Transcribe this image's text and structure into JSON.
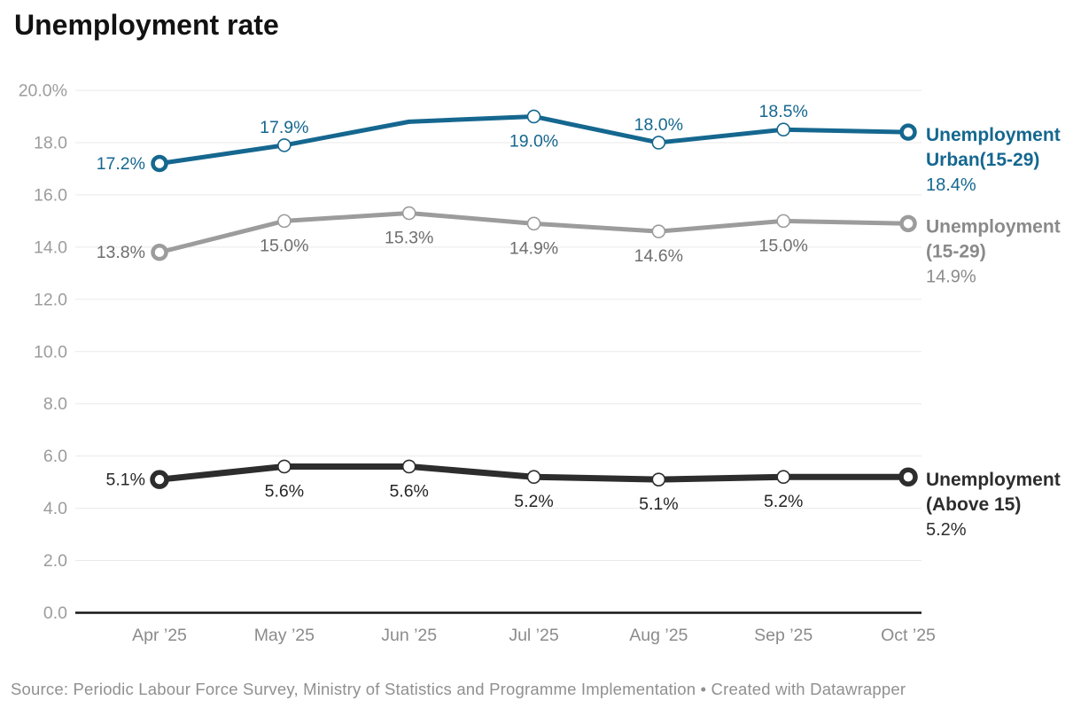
{
  "header": {
    "title": "Unemployment rate"
  },
  "footer": {
    "text": "Source: Periodic Labour Force Survey, Ministry of Statistics and Programme Implementation • Created with Datawrapper"
  },
  "chart_data": {
    "type": "line",
    "title": "Unemployment rate",
    "xlabel": "",
    "ylabel": "",
    "ylim": [
      0,
      20
    ],
    "grid": true,
    "legend_position": "right",
    "x_categories": [
      "Apr ’25",
      "May ’25",
      "Jun ’25",
      "Jul ’25",
      "Aug ’25",
      "Sep ’25",
      "Oct ’25"
    ],
    "ytick_labels": [
      "0.0",
      "2.0",
      "4.0",
      "6.0",
      "8.0",
      "10.0",
      "12.0",
      "14.0",
      "16.0",
      "18.0",
      "20.0%"
    ],
    "series": [
      {
        "name": "Unemployment Urban(15-29)",
        "color": "#15678f",
        "label_color": "#15678f",
        "legend_color": "#15678f",
        "line_width": 5,
        "values": [
          17.2,
          17.9,
          18.8,
          19.0,
          18.0,
          18.5,
          18.4
        ],
        "point_labels": [
          "17.2%",
          "17.9%",
          null,
          "19.0%",
          "18.0%",
          "18.5%",
          null
        ],
        "label_placement": [
          "left",
          "above",
          null,
          "below",
          "above",
          "above",
          null
        ],
        "markers": [
          "bold",
          "thin",
          "none",
          "thin",
          "thin",
          "thin",
          "bold"
        ],
        "legend_lines": [
          "Unemployment",
          "Urban(15-29)"
        ],
        "legend_value": "18.4%"
      },
      {
        "name": "Unemployment (15-29)",
        "color": "#9c9c9c",
        "label_color": "#6e6e6e",
        "legend_color": "#8a8a8a",
        "line_width": 5,
        "values": [
          13.8,
          15.0,
          15.3,
          14.9,
          14.6,
          15.0,
          14.9
        ],
        "point_labels": [
          "13.8%",
          "15.0%",
          "15.3%",
          "14.9%",
          "14.6%",
          "15.0%",
          null
        ],
        "label_placement": [
          "left",
          "below",
          "below",
          "below",
          "below",
          "below",
          null
        ],
        "markers": [
          "bold",
          "thin",
          "thin",
          "thin",
          "thin",
          "thin",
          "bold"
        ],
        "legend_lines": [
          "Unemployment",
          "(15-29)"
        ],
        "legend_value": "14.9%"
      },
      {
        "name": "Unemployment (Above 15)",
        "color": "#2d2d2d",
        "label_color": "#262626",
        "legend_color": "#2d2d2d",
        "line_width": 7,
        "values": [
          5.1,
          5.6,
          5.6,
          5.2,
          5.1,
          5.2,
          5.2
        ],
        "point_labels": [
          "5.1%",
          "5.6%",
          "5.6%",
          "5.2%",
          "5.1%",
          "5.2%",
          null
        ],
        "label_placement": [
          "left",
          "below",
          "below",
          "below",
          "below",
          "below",
          null
        ],
        "markers": [
          "bold",
          "thin",
          "thin",
          "thin",
          "thin",
          "thin",
          "bold"
        ],
        "legend_lines": [
          "Unemployment",
          "(Above 15)"
        ],
        "legend_value": "5.2%"
      }
    ]
  }
}
